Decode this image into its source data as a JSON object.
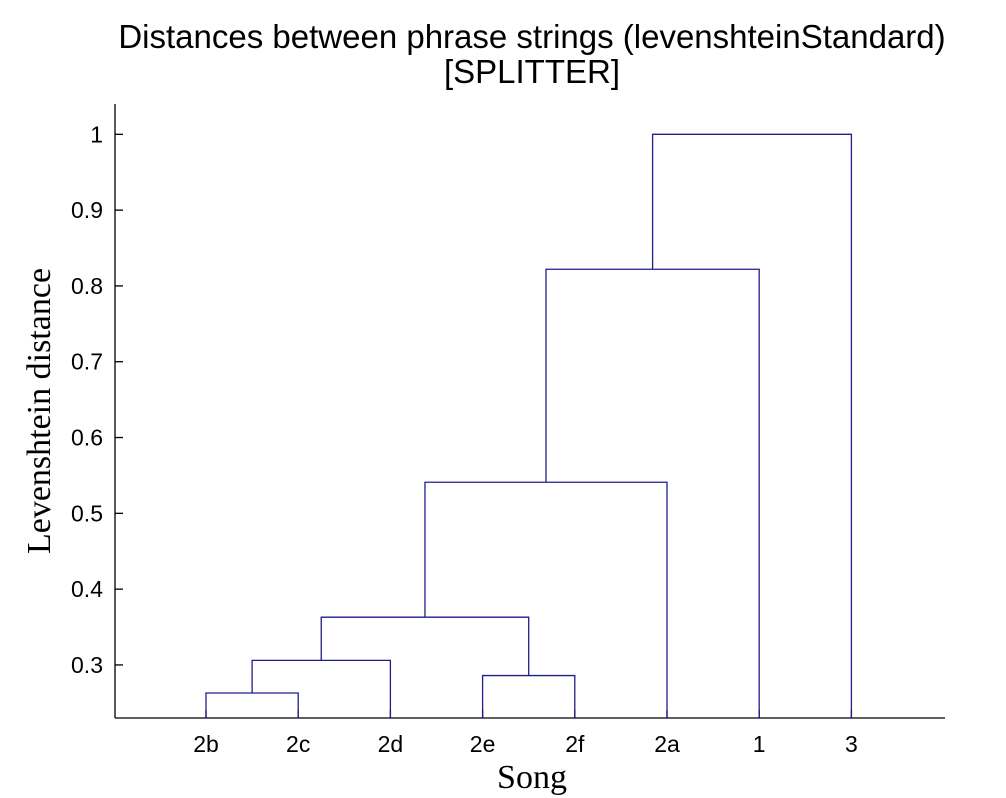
{
  "chart_data": {
    "type": "dendrogram",
    "title": "Distances between phrase strings (levenshteinStandard)",
    "subtitle": "[SPLITTER]",
    "xlabel": "Song",
    "ylabel": "Levenshtein distance",
    "leaves": [
      "2b",
      "2c",
      "2d",
      "2e",
      "2f",
      "2a",
      "1",
      "3"
    ],
    "yticks": [
      "0.3",
      "0.4",
      "0.5",
      "0.6",
      "0.7",
      "0.8",
      "0.9",
      "1"
    ],
    "ylim": [
      0.23,
      1.04
    ],
    "links_color": "#1f1f8c",
    "merges": [
      {
        "left": "2b",
        "right": "2c",
        "height": 0.263
      },
      {
        "left": "2b+2c",
        "right": "2d",
        "height": 0.306
      },
      {
        "left": "2e",
        "right": "2f",
        "height": 0.286
      },
      {
        "left": "2b+2c+2d",
        "right": "2e+2f",
        "height": 0.363
      },
      {
        "left": "2b..2f",
        "right": "2a",
        "height": 0.541
      },
      {
        "left": "2b..2a",
        "right": "1",
        "height": 0.822
      },
      {
        "left": "2b..1",
        "right": "3",
        "height": 1.0
      }
    ]
  }
}
